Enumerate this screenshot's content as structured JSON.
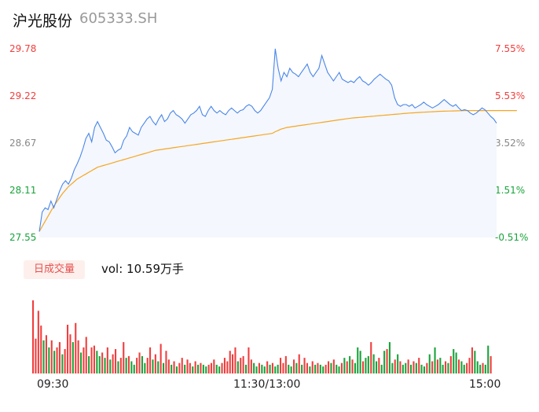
{
  "header": {
    "name": "沪光股份",
    "code": "605333.SH"
  },
  "colors": {
    "up": "#f03e3e",
    "down": "#19a33b",
    "price_line": "#4a86e8",
    "avg_line": "#f5a623",
    "neutral": "#888888"
  },
  "volume_panel": {
    "badge": "日成交量",
    "text": "vol: 10.59万手"
  },
  "chart_data": {
    "type": "line",
    "title": "",
    "price_axis": {
      "ylim": [
        27.55,
        29.78
      ],
      "ticks": [
        "29.78",
        "29.22",
        "28.67",
        "28.11",
        "27.55"
      ]
    },
    "pct_axis": {
      "ticks": [
        "7.55%",
        "5.53%",
        "3.52%",
        "1.51%",
        "-0.51%"
      ]
    },
    "time_labels": [
      "09:30",
      "11:30/13:00",
      "15:00"
    ],
    "series": [
      {
        "name": "",
        "kind": "price",
        "values": [
          27.62,
          27.85,
          27.9,
          27.88,
          27.98,
          27.9,
          28.0,
          28.1,
          28.18,
          28.22,
          28.18,
          28.25,
          28.35,
          28.42,
          28.5,
          28.6,
          28.72,
          28.78,
          28.68,
          28.85,
          28.92,
          28.85,
          28.78,
          28.7,
          28.68,
          28.62,
          28.55,
          28.58,
          28.6,
          28.7,
          28.75,
          28.85,
          28.8,
          28.78,
          28.76,
          28.85,
          28.9,
          28.95,
          28.98,
          28.92,
          28.88,
          28.95,
          29.0,
          28.92,
          28.95,
          29.02,
          29.05,
          29.0,
          28.98,
          28.95,
          28.9,
          28.95,
          29.0,
          29.02,
          29.05,
          29.1,
          29.0,
          28.98,
          29.05,
          29.1,
          29.05,
          29.02,
          29.05,
          29.02,
          29.0,
          29.05,
          29.08,
          29.05,
          29.02,
          29.05,
          29.06,
          29.1,
          29.12,
          29.1,
          29.05,
          29.02,
          29.05,
          29.1,
          29.15,
          29.2,
          29.3,
          29.78,
          29.55,
          29.4,
          29.5,
          29.45,
          29.55,
          29.5,
          29.48,
          29.45,
          29.5,
          29.55,
          29.6,
          29.5,
          29.45,
          29.5,
          29.55,
          29.7,
          29.6,
          29.5,
          29.45,
          29.4,
          29.45,
          29.5,
          29.42,
          29.4,
          29.38,
          29.4,
          29.38,
          29.42,
          29.45,
          29.4,
          29.38,
          29.35,
          29.38,
          29.42,
          29.45,
          29.48,
          29.45,
          29.42,
          29.4,
          29.35,
          29.2,
          29.12,
          29.1,
          29.12,
          29.12,
          29.1,
          29.12,
          29.08,
          29.1,
          29.12,
          29.15,
          29.12,
          29.1,
          29.08,
          29.1,
          29.12,
          29.15,
          29.18,
          29.15,
          29.12,
          29.1,
          29.12,
          29.08,
          29.05,
          29.06,
          29.05,
          29.02,
          29.0,
          29.02,
          29.05,
          29.08,
          29.06,
          29.02,
          28.98,
          28.95,
          28.9
        ]
      },
      {
        "name": "",
        "kind": "average",
        "values": [
          27.62,
          27.68,
          27.74,
          27.8,
          27.86,
          27.92,
          27.97,
          28.02,
          28.07,
          28.11,
          28.15,
          28.18,
          28.21,
          28.24,
          28.26,
          28.28,
          28.3,
          28.32,
          28.34,
          28.36,
          28.38,
          28.39,
          28.4,
          28.41,
          28.42,
          28.43,
          28.44,
          28.45,
          28.46,
          28.47,
          28.48,
          28.49,
          28.5,
          28.51,
          28.52,
          28.53,
          28.54,
          28.55,
          28.56,
          28.57,
          28.58,
          28.585,
          28.59,
          28.595,
          28.6,
          28.605,
          28.61,
          28.615,
          28.62,
          28.625,
          28.63,
          28.635,
          28.64,
          28.645,
          28.65,
          28.655,
          28.66,
          28.665,
          28.67,
          28.675,
          28.68,
          28.685,
          28.69,
          28.695,
          28.7,
          28.705,
          28.71,
          28.715,
          28.72,
          28.725,
          28.73,
          28.735,
          28.74,
          28.745,
          28.75,
          28.755,
          28.76,
          28.765,
          28.77,
          28.775,
          28.78,
          28.8,
          28.815,
          28.83,
          28.84,
          28.85,
          28.855,
          28.86,
          28.865,
          28.87,
          28.875,
          28.88,
          28.885,
          28.89,
          28.895,
          28.9,
          28.905,
          28.91,
          28.915,
          28.92,
          28.925,
          28.93,
          28.935,
          28.94,
          28.945,
          28.95,
          28.955,
          28.96,
          28.963,
          28.966,
          28.969,
          28.972,
          28.975,
          28.978,
          28.981,
          28.984,
          28.987,
          28.99,
          28.993,
          28.996,
          28.999,
          29.002,
          29.005,
          29.008,
          29.011,
          29.014,
          29.017,
          29.02,
          29.022,
          29.024,
          29.026,
          29.028,
          29.03,
          29.032,
          29.034,
          29.036,
          29.038,
          29.04,
          29.041,
          29.042,
          29.043,
          29.044,
          29.045,
          29.046,
          29.047,
          29.048,
          29.049,
          29.05,
          29.05,
          29.05,
          29.05,
          29.05,
          29.05,
          29.05,
          29.05,
          29.05,
          29.05,
          29.05,
          29.05,
          29.05,
          29.05,
          29.05,
          29.05,
          29.05,
          29.05
        ]
      }
    ],
    "volume": {
      "values": [
        84,
        40,
        72,
        55,
        38,
        44,
        30,
        38,
        26,
        30,
        36,
        22,
        28,
        56,
        45,
        36,
        58,
        38,
        24,
        30,
        42,
        20,
        30,
        32,
        26,
        20,
        24,
        18,
        30,
        16,
        22,
        28,
        14,
        18,
        36,
        18,
        20,
        14,
        10,
        18,
        24,
        20,
        12,
        18,
        30,
        16,
        22,
        14,
        34,
        12,
        26,
        16,
        10,
        14,
        8,
        12,
        18,
        10,
        16,
        12,
        8,
        14,
        10,
        12,
        10,
        8,
        10,
        12,
        16,
        10,
        8,
        12,
        18,
        14,
        26,
        22,
        30,
        14,
        18,
        20,
        10,
        30,
        16,
        12,
        8,
        12,
        10,
        8,
        14,
        10,
        12,
        8,
        10,
        18,
        12,
        20,
        10,
        8,
        16,
        12,
        22,
        10,
        18,
        12,
        8,
        14,
        10,
        12,
        10,
        8,
        10,
        14,
        12,
        16,
        10,
        8,
        12,
        18,
        14,
        20,
        16,
        12,
        30,
        26,
        14,
        18,
        20,
        36,
        22,
        14,
        18,
        10,
        26,
        28,
        36,
        12,
        16,
        22,
        14,
        10,
        12,
        16,
        10,
        14,
        12,
        18,
        10,
        8,
        12,
        22,
        14,
        30,
        16,
        18,
        10,
        14,
        12,
        20,
        28,
        24,
        16,
        14,
        10,
        12,
        18,
        30,
        26,
        14,
        10,
        12,
        10,
        32,
        20
      ],
      "up": [
        1,
        1,
        1,
        1,
        0,
        1,
        0,
        1,
        0,
        1,
        1,
        0,
        1,
        1,
        1,
        0,
        1,
        1,
        0,
        1,
        1,
        0,
        1,
        1,
        0,
        0,
        1,
        0,
        1,
        0,
        1,
        1,
        0,
        1,
        1,
        0,
        1,
        0,
        0,
        1,
        1,
        0,
        0,
        1,
        1,
        0,
        1,
        0,
        1,
        0,
        1,
        1,
        0,
        1,
        0,
        1,
        1,
        0,
        1,
        1,
        0,
        1,
        0,
        1,
        0,
        0,
        1,
        1,
        1,
        0,
        0,
        1,
        1,
        1,
        1,
        1,
        1,
        0,
        1,
        1,
        0,
        1,
        1,
        0,
        0,
        1,
        0,
        0,
        1,
        0,
        1,
        0,
        0,
        1,
        1,
        1,
        0,
        0,
        1,
        0,
        1,
        0,
        1,
        1,
        0,
        1,
        0,
        1,
        0,
        0,
        1,
        1,
        0,
        1,
        0,
        0,
        1,
        0,
        1,
        0,
        1,
        0,
        0,
        0,
        1,
        0,
        0,
        1,
        0,
        0,
        1,
        0,
        0,
        1,
        0,
        0,
        1,
        0,
        1,
        0,
        0,
        1,
        0,
        1,
        0,
        1,
        0,
        0,
        1,
        0,
        1,
        0,
        1,
        0,
        0,
        1,
        0,
        1,
        0,
        0,
        1,
        0,
        0,
        1,
        1,
        1,
        0,
        0,
        0,
        1,
        0,
        0,
        1
      ]
    }
  }
}
